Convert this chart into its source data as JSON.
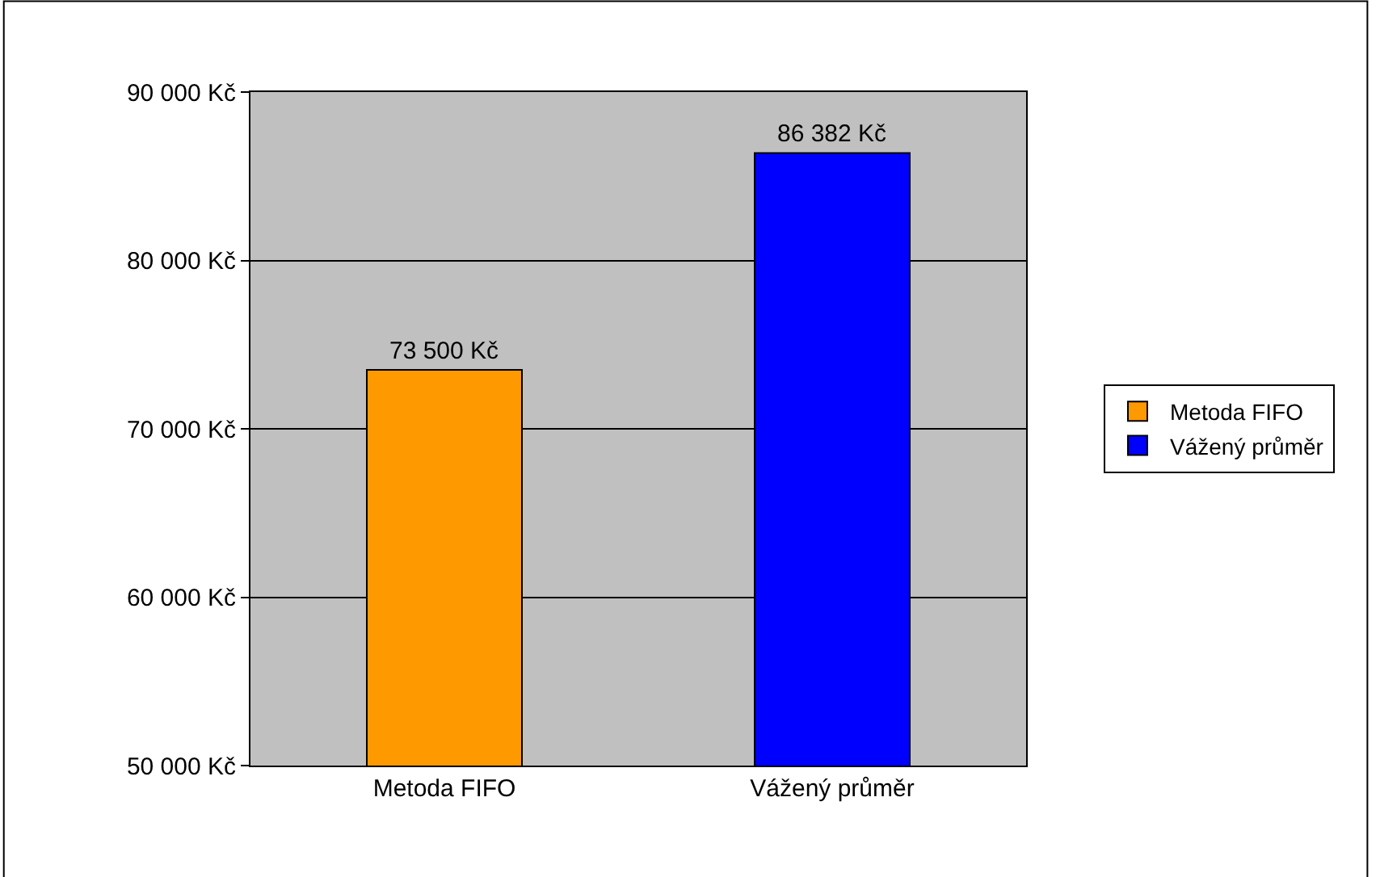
{
  "chart_data": {
    "type": "bar",
    "categories": [
      "Metoda FIFO",
      "Vážený průměr"
    ],
    "series": [
      {
        "name": "Metoda FIFO",
        "color": "#ff9900",
        "values": [
          73500,
          null
        ],
        "value_labels": [
          "73 500 Kč",
          null
        ]
      },
      {
        "name": "Vážený průměr",
        "color": "#0000ff",
        "values": [
          null,
          86382
        ],
        "value_labels": [
          null,
          "86 382 Kč"
        ]
      }
    ],
    "ylim": [
      50000,
      90000
    ],
    "yticks": [
      {
        "value": 50000,
        "label": "50 000 Kč"
      },
      {
        "value": 60000,
        "label": "60 000 Kč"
      },
      {
        "value": 70000,
        "label": "70 000 Kč"
      },
      {
        "value": 80000,
        "label": "80 000 Kč"
      },
      {
        "value": 90000,
        "label": "90 000 Kč"
      }
    ],
    "grid": "y",
    "legend": "right"
  }
}
